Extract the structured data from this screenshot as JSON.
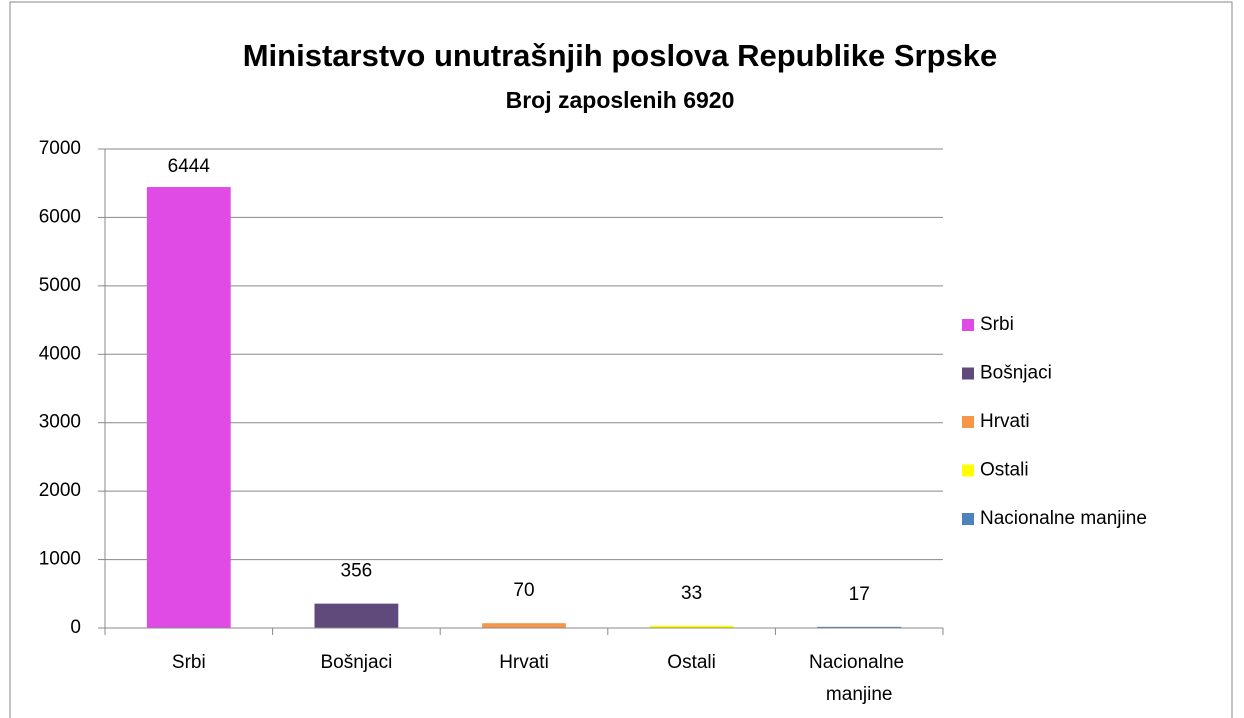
{
  "chart_data": {
    "type": "bar",
    "title": "Ministarstvo unutrašnjih poslova Republike Srpske",
    "subtitle": "Broj zaposlenih 6920",
    "categories": [
      "Srbi",
      "Bošnjaci",
      "Hrvati",
      "Ostali",
      "Nacionalne manjine"
    ],
    "values": [
      6444,
      356,
      70,
      33,
      17
    ],
    "colors": [
      "#e04be6",
      "#604a7b",
      "#f79646",
      "#ffff00",
      "#4f81bd"
    ],
    "ylim": [
      0,
      7000
    ],
    "yticks": [
      0,
      1000,
      2000,
      3000,
      4000,
      5000,
      6000,
      7000
    ],
    "grid": true,
    "legend": "right"
  }
}
